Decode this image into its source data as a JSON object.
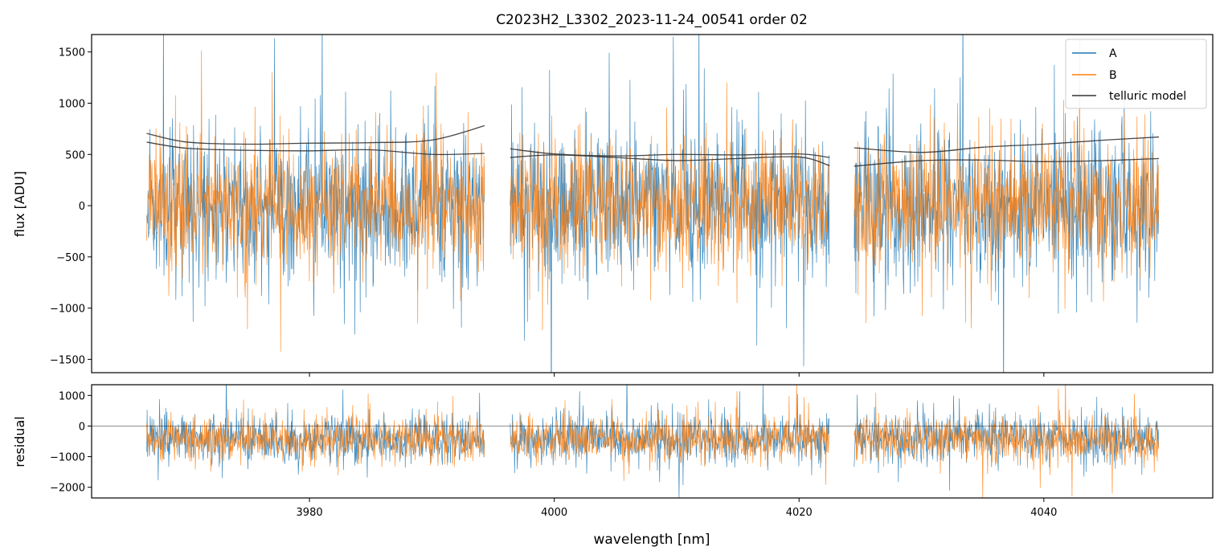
{
  "figure": {
    "title": "C2023H2_L3302_2023-11-24_00541  order 02"
  },
  "colors": {
    "A": "#1f77b4",
    "B": "#ff7f0e",
    "telluric": "#333333",
    "axes": "#000000"
  },
  "chart_data": [
    {
      "type": "line",
      "panel": "top",
      "title": "C2023H2_L3302_2023-11-24_00541  order 02",
      "xlabel": "",
      "ylabel": "flux [ADU]",
      "xlim": [
        3962.2,
        4053.8
      ],
      "ylim": [
        -1630,
        1670
      ],
      "xticks": [
        3980,
        4000,
        4020,
        4040
      ],
      "yticks": [
        -1500,
        -1000,
        -500,
        0,
        500,
        1000,
        1500
      ],
      "ytick_labels": [
        "−1500",
        "−1000",
        "−500",
        "0",
        "500",
        "1000",
        "1500"
      ],
      "legend": {
        "position": "top-right",
        "entries": [
          "A",
          "B",
          "telluric model"
        ]
      },
      "segments": [
        [
          3966.7,
          3994.3
        ],
        [
          3996.4,
          4022.5
        ],
        [
          4024.5,
          4049.4
        ]
      ],
      "series": [
        {
          "name": "A",
          "kind": "noise",
          "center": 0,
          "sigma": 650,
          "seed": 11
        },
        {
          "name": "B",
          "kind": "noise",
          "center": 0,
          "sigma": 560,
          "seed": 23
        },
        {
          "name": "telluric model",
          "kind": "curves",
          "curves": [
            {
              "x": [
                3966.7,
                3970,
                3975,
                3980,
                3985,
                3990,
                3994.3
              ],
              "y": [
                705,
                620,
                600,
                610,
                615,
                640,
                780
              ]
            },
            {
              "x": [
                3966.7,
                3970,
                3975,
                3980,
                3985,
                3990,
                3994.3
              ],
              "y": [
                620,
                560,
                540,
                535,
                545,
                500,
                510
              ]
            },
            {
              "x": [
                3996.4,
                4000,
                4005,
                4010,
                4015,
                4020,
                4022.5
              ],
              "y": [
                555,
                505,
                485,
                500,
                495,
                505,
                470
              ]
            },
            {
              "x": [
                3996.4,
                4000,
                4005,
                4010,
                4015,
                4020,
                4022.5
              ],
              "y": [
                470,
                495,
                470,
                440,
                460,
                475,
                390
              ]
            },
            {
              "x": [
                4024.5,
                4030,
                4035,
                4040,
                4045,
                4049.4
              ],
              "y": [
                565,
                520,
                570,
                600,
                640,
                670
              ]
            },
            {
              "x": [
                4024.5,
                4030,
                4035,
                4040,
                4045,
                4049.4
              ],
              "y": [
                385,
                440,
                445,
                430,
                440,
                460
              ]
            }
          ]
        }
      ]
    },
    {
      "type": "line",
      "panel": "bottom",
      "xlabel": "wavelength [nm]",
      "ylabel": "residual",
      "xlim": [
        3962.2,
        4053.8
      ],
      "ylim": [
        -2350,
        1350
      ],
      "xticks": [
        3980,
        4000,
        4020,
        4040
      ],
      "xtick_labels": [
        "3980",
        "4000",
        "4020",
        "4040"
      ],
      "yticks": [
        -2000,
        -1000,
        0,
        1000
      ],
      "ytick_labels": [
        "−2000",
        "−1000",
        "0",
        "1000"
      ],
      "hline": 0,
      "segments": [
        [
          3966.7,
          3994.3
        ],
        [
          3996.4,
          4022.5
        ],
        [
          4024.5,
          4049.4
        ]
      ],
      "series": [
        {
          "name": "A",
          "kind": "noise",
          "center": -420,
          "sigma": 700,
          "seed": 37
        },
        {
          "name": "B",
          "kind": "noise",
          "center": -420,
          "sigma": 640,
          "seed": 53
        }
      ]
    }
  ]
}
